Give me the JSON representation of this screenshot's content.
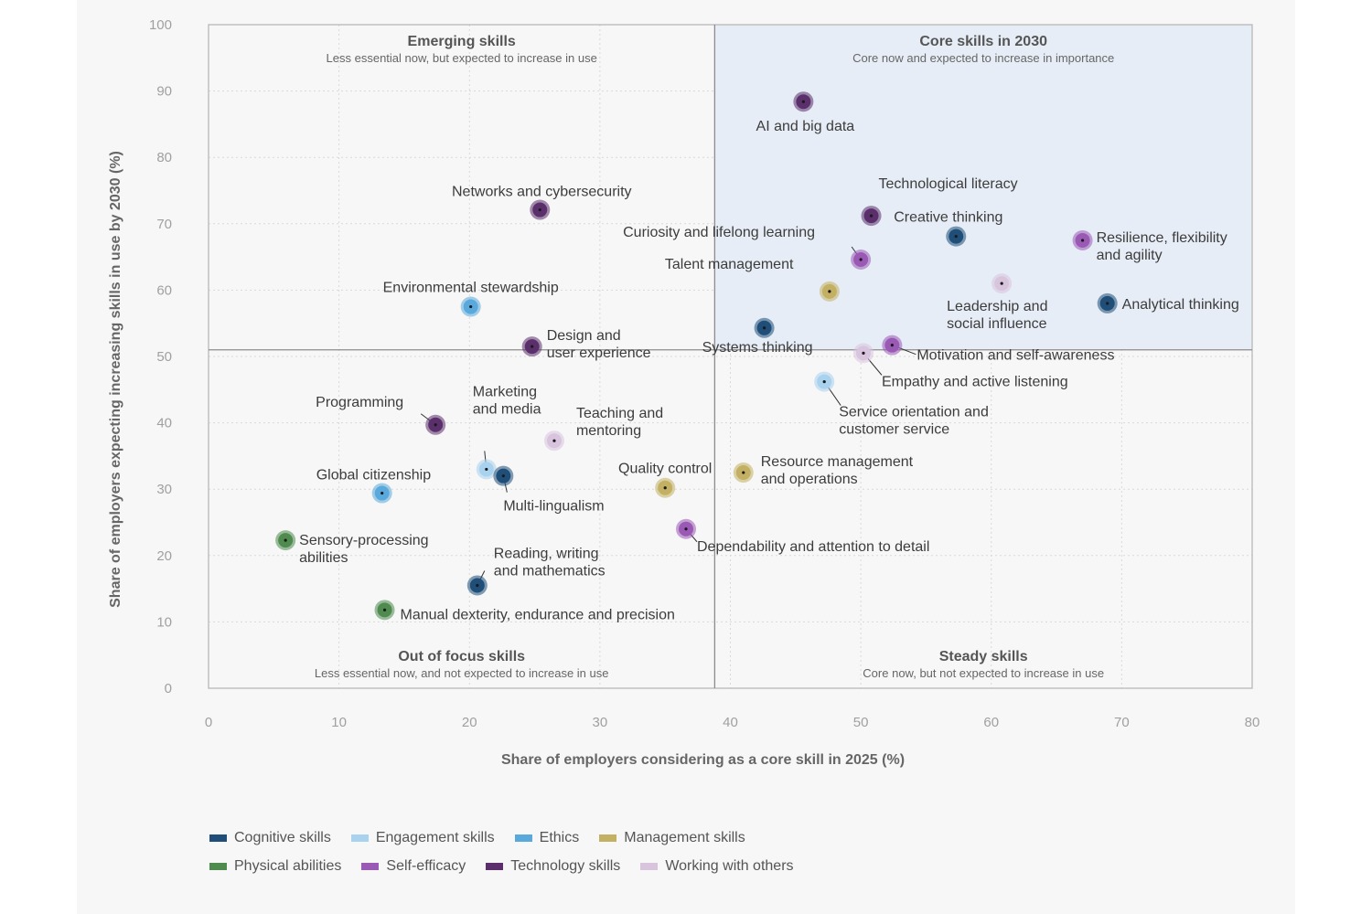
{
  "chart_data": {
    "type": "scatter",
    "title": "",
    "xlabel": "Share of employers considering as a core skill in 2025 (%)",
    "ylabel": "Share of employers expecting increasing skills in use by 2030 (%)",
    "xlim": [
      0,
      80
    ],
    "ylim": [
      0,
      100
    ],
    "xticks": [
      "0",
      "10",
      "20",
      "30",
      "40",
      "50",
      "60",
      "70",
      "80"
    ],
    "yticks": [
      "0",
      "10",
      "20",
      "30",
      "40",
      "50",
      "60",
      "70",
      "80",
      "90",
      "100"
    ],
    "grid": true,
    "divider": {
      "x": 38.8,
      "y": 51
    },
    "quadrants": [
      {
        "id": "tl",
        "title": "Emerging skills",
        "subtitle": "Less essential now, but expected to increase in use"
      },
      {
        "id": "tr",
        "title": "Core skills in 2030",
        "subtitle": "Core now and expected to increase in importance"
      },
      {
        "id": "bl",
        "title": "Out of focus skills",
        "subtitle": "Less essential now, and not expected to increase in use"
      },
      {
        "id": "br",
        "title": "Steady skills",
        "subtitle": "Core now, but not expected to increase in use"
      }
    ],
    "categories": [
      {
        "name": "Cognitive skills",
        "color": "#1f4e79"
      },
      {
        "name": "Engagement skills",
        "color": "#a9d2ee"
      },
      {
        "name": "Ethics",
        "color": "#5aa9dc"
      },
      {
        "name": "Management skills",
        "color": "#c3b063"
      },
      {
        "name": "Physical abilities",
        "color": "#4f8a4f"
      },
      {
        "name": "Self-efficacy",
        "color": "#9b59b6"
      },
      {
        "name": "Technology skills",
        "color": "#5b2f6b"
      },
      {
        "name": "Working with others",
        "color": "#d9c4de"
      }
    ],
    "points": [
      {
        "label": [
          "AI and big data"
        ],
        "x": 45.6,
        "y": 88.4,
        "cat": 6
      },
      {
        "label": [
          "Technological literacy"
        ],
        "x": 50.8,
        "y": 71.2,
        "cat": 6
      },
      {
        "label": [
          "Creative thinking"
        ],
        "x": 57.3,
        "y": 68.1,
        "cat": 0
      },
      {
        "label": [
          "Resilience, flexibility",
          "and agility"
        ],
        "x": 67.0,
        "y": 67.5,
        "cat": 5
      },
      {
        "label": [
          "Curiosity and lifelong learning"
        ],
        "x": 50.0,
        "y": 64.6,
        "cat": 5
      },
      {
        "label": [
          "Talent management"
        ],
        "x": 47.6,
        "y": 59.8,
        "cat": 3
      },
      {
        "label": [
          "Leadership and",
          "social influence"
        ],
        "x": 60.8,
        "y": 61.0,
        "cat": 7
      },
      {
        "label": [
          "Analytical thinking"
        ],
        "x": 68.9,
        "y": 58.0,
        "cat": 0
      },
      {
        "label": [
          "Systems thinking"
        ],
        "x": 42.6,
        "y": 54.3,
        "cat": 0
      },
      {
        "label": [
          "Motivation and self-awareness"
        ],
        "x": 52.4,
        "y": 51.7,
        "cat": 5
      },
      {
        "label": [
          "Empathy and active listening"
        ],
        "x": 50.2,
        "y": 50.5,
        "cat": 7
      },
      {
        "label": [
          "Service orientation and",
          "customer service"
        ],
        "x": 47.2,
        "y": 46.2,
        "cat": 1
      },
      {
        "label": [
          "Networks and cybersecurity"
        ],
        "x": 25.4,
        "y": 72.1,
        "cat": 6
      },
      {
        "label": [
          "Environmental stewardship"
        ],
        "x": 20.1,
        "y": 57.5,
        "cat": 2
      },
      {
        "label": [
          "Design and",
          "user experience"
        ],
        "x": 24.8,
        "y": 51.5,
        "cat": 6
      },
      {
        "label": [
          "Programming"
        ],
        "x": 17.4,
        "y": 39.7,
        "cat": 6
      },
      {
        "label": [
          "Marketing",
          "and media"
        ],
        "x": 21.3,
        "y": 33.0,
        "cat": 1
      },
      {
        "label": [
          "Multi-lingualism"
        ],
        "x": 22.6,
        "y": 32.0,
        "cat": 0
      },
      {
        "label": [
          "Teaching and",
          "mentoring"
        ],
        "x": 26.5,
        "y": 37.3,
        "cat": 7
      },
      {
        "label": [
          "Global citizenship"
        ],
        "x": 13.3,
        "y": 29.4,
        "cat": 2
      },
      {
        "label": [
          "Quality control"
        ],
        "x": 35.0,
        "y": 30.2,
        "cat": 3
      },
      {
        "label": [
          "Resource management",
          "and operations"
        ],
        "x": 41.0,
        "y": 32.5,
        "cat": 3
      },
      {
        "label": [
          "Dependability and attention to detail"
        ],
        "x": 36.6,
        "y": 24.0,
        "cat": 5
      },
      {
        "label": [
          "Sensory-processing",
          "abilities"
        ],
        "x": 5.9,
        "y": 22.3,
        "cat": 4
      },
      {
        "label": [
          "Reading, writing",
          "and mathematics"
        ],
        "x": 20.6,
        "y": 15.5,
        "cat": 0
      },
      {
        "label": [
          "Manual dexterity, endurance and precision"
        ],
        "x": 13.5,
        "y": 11.8,
        "cat": 4
      }
    ]
  }
}
